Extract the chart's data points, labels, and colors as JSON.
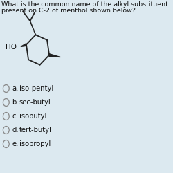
{
  "background_color": "#dce9f0",
  "question_line1": "What is the common name of the alkyl substituent",
  "question_line2": "present on C-2 of menthol shown below?",
  "options": [
    {
      "letter": "a.",
      "text": "iso-pentyl"
    },
    {
      "letter": "b.",
      "text": "sec-butyl"
    },
    {
      "letter": "c.",
      "text": "isobutyl"
    },
    {
      "letter": "d.",
      "text": "tert-butyl"
    },
    {
      "letter": "e.",
      "text": "isopropyl"
    }
  ],
  "question_fontsize": 6.8,
  "option_fontsize": 7.2,
  "text_color": "#111111",
  "ring_color": "#222222",
  "circle_color": "#888888"
}
